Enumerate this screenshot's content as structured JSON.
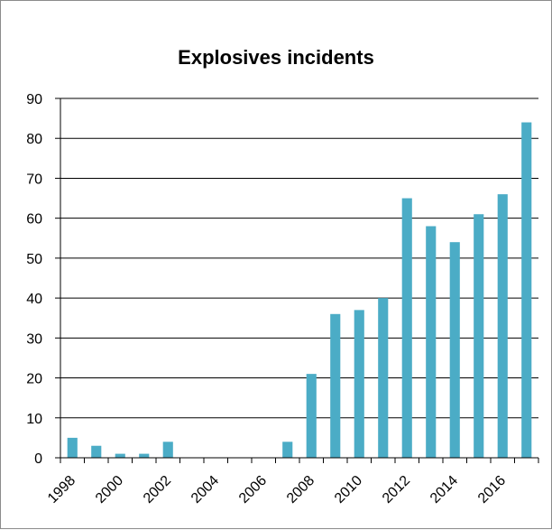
{
  "chart_data": {
    "type": "bar",
    "title": "Explosives incidents",
    "xlabel": "",
    "ylabel": "",
    "categories": [
      "1998",
      "1999",
      "2000",
      "2001",
      "2002",
      "2003",
      "2004",
      "2005",
      "2006",
      "2007",
      "2008",
      "2009",
      "2010",
      "2011",
      "2012",
      "2013",
      "2014",
      "2015",
      "2016",
      "2017"
    ],
    "x_tick_labels": [
      "1998",
      "2000",
      "2002",
      "2004",
      "2006",
      "2008",
      "2010",
      "2012",
      "2014",
      "2016"
    ],
    "values": [
      5,
      3,
      1,
      1,
      4,
      0,
      0,
      0,
      0,
      4,
      21,
      36,
      37,
      40,
      65,
      58,
      54,
      61,
      66,
      84
    ],
    "ylim": [
      0,
      90
    ],
    "yticks": [
      0,
      10,
      20,
      30,
      40,
      50,
      60,
      70,
      80,
      90
    ],
    "grid": "horizontal",
    "legend": "none",
    "bar_color": "#4BACC6"
  }
}
